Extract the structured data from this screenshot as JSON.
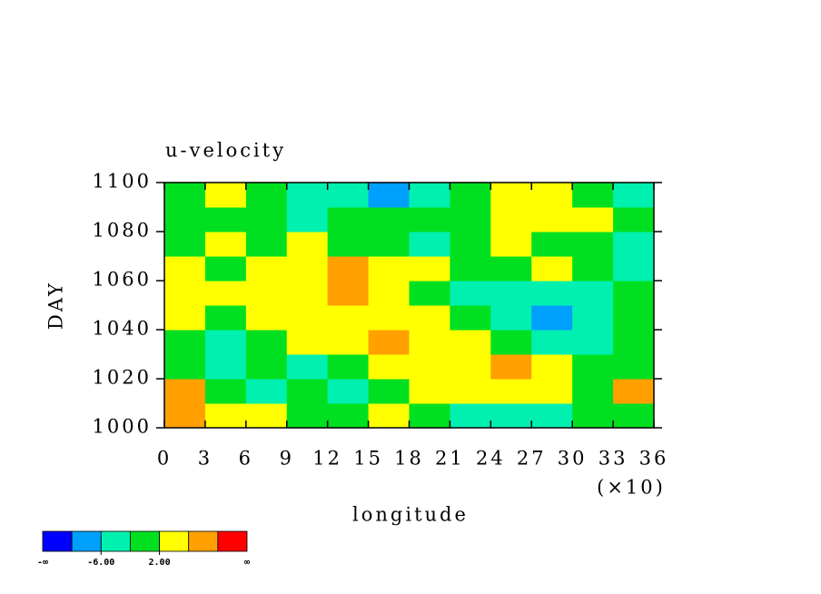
{
  "chart_data": {
    "type": "contour",
    "title": "u-velocity",
    "x_label": "longitude",
    "y_label": "DAY",
    "x_multiplier": "(×10)",
    "xlim": [
      0,
      36
    ],
    "xticks": [
      0,
      3,
      6,
      9,
      12,
      15,
      18,
      21,
      24,
      27,
      30,
      33,
      36
    ],
    "ylim": [
      1000,
      1100
    ],
    "yticks": [
      1000,
      1020,
      1040,
      1060,
      1080,
      1100
    ],
    "x": [
      1.5,
      4.5,
      7.5,
      10.5,
      13.5,
      16.5,
      19.5,
      22.5,
      25.5,
      28.5,
      31.5,
      34.5
    ],
    "y": [
      1005,
      1015,
      1025,
      1035,
      1045,
      1055,
      1065,
      1075,
      1085,
      1095
    ],
    "z": [
      [
        6,
        4,
        4,
        0,
        0,
        2,
        0,
        -4,
        -4,
        -4,
        0,
        0
      ],
      [
        8,
        0,
        -4,
        0,
        -4,
        0,
        2,
        4,
        4,
        2,
        0,
        6
      ],
      [
        0,
        -4,
        0,
        -4,
        0,
        2,
        4,
        4,
        8,
        4,
        0,
        0
      ],
      [
        0,
        -4,
        0,
        2,
        4,
        8,
        4,
        2,
        0,
        -4,
        -4,
        0
      ],
      [
        4,
        0,
        4,
        2,
        4,
        4,
        4,
        0,
        -4,
        -8,
        -4,
        0
      ],
      [
        4,
        4,
        2,
        4,
        6,
        2,
        0,
        -4,
        -4,
        -4,
        -4,
        0
      ],
      [
        4,
        0,
        4,
        2,
        8,
        4,
        2,
        0,
        0,
        4,
        0,
        -4
      ],
      [
        0,
        4,
        0,
        4,
        0,
        0,
        -4,
        0,
        4,
        0,
        0,
        -4
      ],
      [
        0,
        0,
        0,
        -4,
        0,
        0,
        0,
        0,
        4,
        4,
        2,
        0
      ],
      [
        0,
        4,
        0,
        -4,
        -4,
        -8,
        -4,
        0,
        4,
        4,
        0,
        -4
      ]
    ],
    "color_levels": [
      -10,
      -6,
      -2,
      2,
      6,
      10
    ],
    "colors": [
      "#0000ff",
      "#00a0ff",
      "#00f0b0",
      "#00e020",
      "#ffff00",
      "#ffa000",
      "#ff0000"
    ],
    "colorbar_low_label": "-∞",
    "colorbar_high_label": "∞",
    "colorbar_ticks": [
      {
        "value": -6,
        "label": "-6.00"
      },
      {
        "value": 2,
        "label": "2.00"
      }
    ]
  }
}
